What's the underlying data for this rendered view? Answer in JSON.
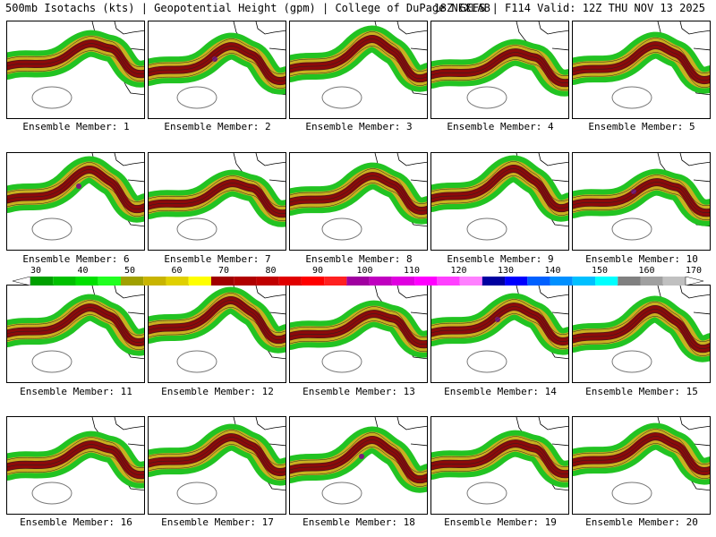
{
  "header": {
    "title_left": "500mb Isotachs (kts) | Geopotential Height (gpm) | College of DuPage NEXLAB",
    "title_right": "18Z GEFS | F114 Valid: 12Z THU NOV 13 2025"
  },
  "panel_label_prefix": "Ensemble Member:",
  "members": [
    {
      "label": "Ensemble Member: 1"
    },
    {
      "label": "Ensemble Member: 2"
    },
    {
      "label": "Ensemble Member: 3"
    },
    {
      "label": "Ensemble Member: 4"
    },
    {
      "label": "Ensemble Member: 5"
    },
    {
      "label": "Ensemble Member: 6"
    },
    {
      "label": "Ensemble Member: 7"
    },
    {
      "label": "Ensemble Member: 8"
    },
    {
      "label": "Ensemble Member: 9"
    },
    {
      "label": "Ensemble Member: 10"
    },
    {
      "label": "Ensemble Member: 11"
    },
    {
      "label": "Ensemble Member: 12"
    },
    {
      "label": "Ensemble Member: 13"
    },
    {
      "label": "Ensemble Member: 14"
    },
    {
      "label": "Ensemble Member: 15"
    },
    {
      "label": "Ensemble Member: 16"
    },
    {
      "label": "Ensemble Member: 17"
    },
    {
      "label": "Ensemble Member: 18"
    },
    {
      "label": "Ensemble Member: 19"
    },
    {
      "label": "Ensemble Member: 20"
    }
  ],
  "colorbar": {
    "ticks": [
      "30",
      "40",
      "50",
      "60",
      "70",
      "80",
      "90",
      "100",
      "110",
      "120",
      "130",
      "140",
      "150",
      "160",
      "170"
    ],
    "colors": [
      "#00a000",
      "#00c000",
      "#00e000",
      "#20ff20",
      "#a0a000",
      "#c8b400",
      "#e0d000",
      "#ffff00",
      "#a00000",
      "#b00000",
      "#c00000",
      "#e00000",
      "#ff0000",
      "#ff2020",
      "#a000a0",
      "#c000c0",
      "#e000e0",
      "#ff00ff",
      "#ff40ff",
      "#ff80ff",
      "#0000a0",
      "#0000ff",
      "#0060ff",
      "#0090ff",
      "#00c0ff",
      "#00ffff",
      "#808080",
      "#a0a0a0",
      "#c0c0c0"
    ],
    "units": "kts"
  },
  "jet_colors": {
    "green": "#22c322",
    "yellow": "#c9b020",
    "darkred": "#8c0a0a",
    "purple": "#7a1a7a"
  }
}
